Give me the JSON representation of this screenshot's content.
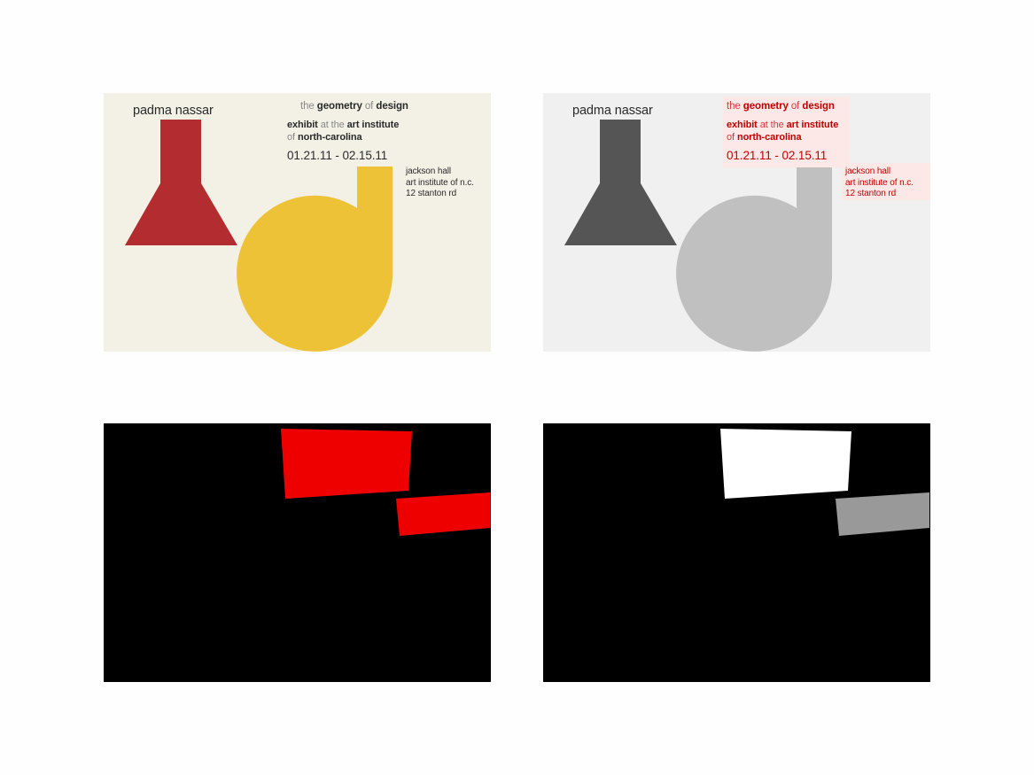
{
  "poster": {
    "artist": "padma nassar",
    "title_the": "the",
    "title_geometry": "geometry",
    "title_of": "of",
    "title_design": "design",
    "exhibit_word": "exhibit",
    "exhibit_at": "at",
    "exhibit_the": "the",
    "exhibit_place": "art institute",
    "of_word": "of",
    "place_state": "north-carolina",
    "dates": "01.21.11 - 02.15.11",
    "venue_line1": "jackson hall",
    "venue_line2": "art institute of n.c.",
    "venue_line3": "12 stanton rd"
  },
  "colors": {
    "poster_bg": "#f3f0e6",
    "bottle_red": "#b32c30",
    "shape_yellow": "#eec236",
    "text_dark": "#2a2a2a",
    "gray_bg": "#f0f0f0",
    "gray_bottle": "#555555",
    "gray_shape": "#c0c0c0",
    "highlight_text": "#c00000",
    "highlight_bg": "#fde8e8",
    "mask_bg": "#000000",
    "mask_red": "#ee0000",
    "mask_white": "#ffffff",
    "mask_gray": "#999999"
  }
}
